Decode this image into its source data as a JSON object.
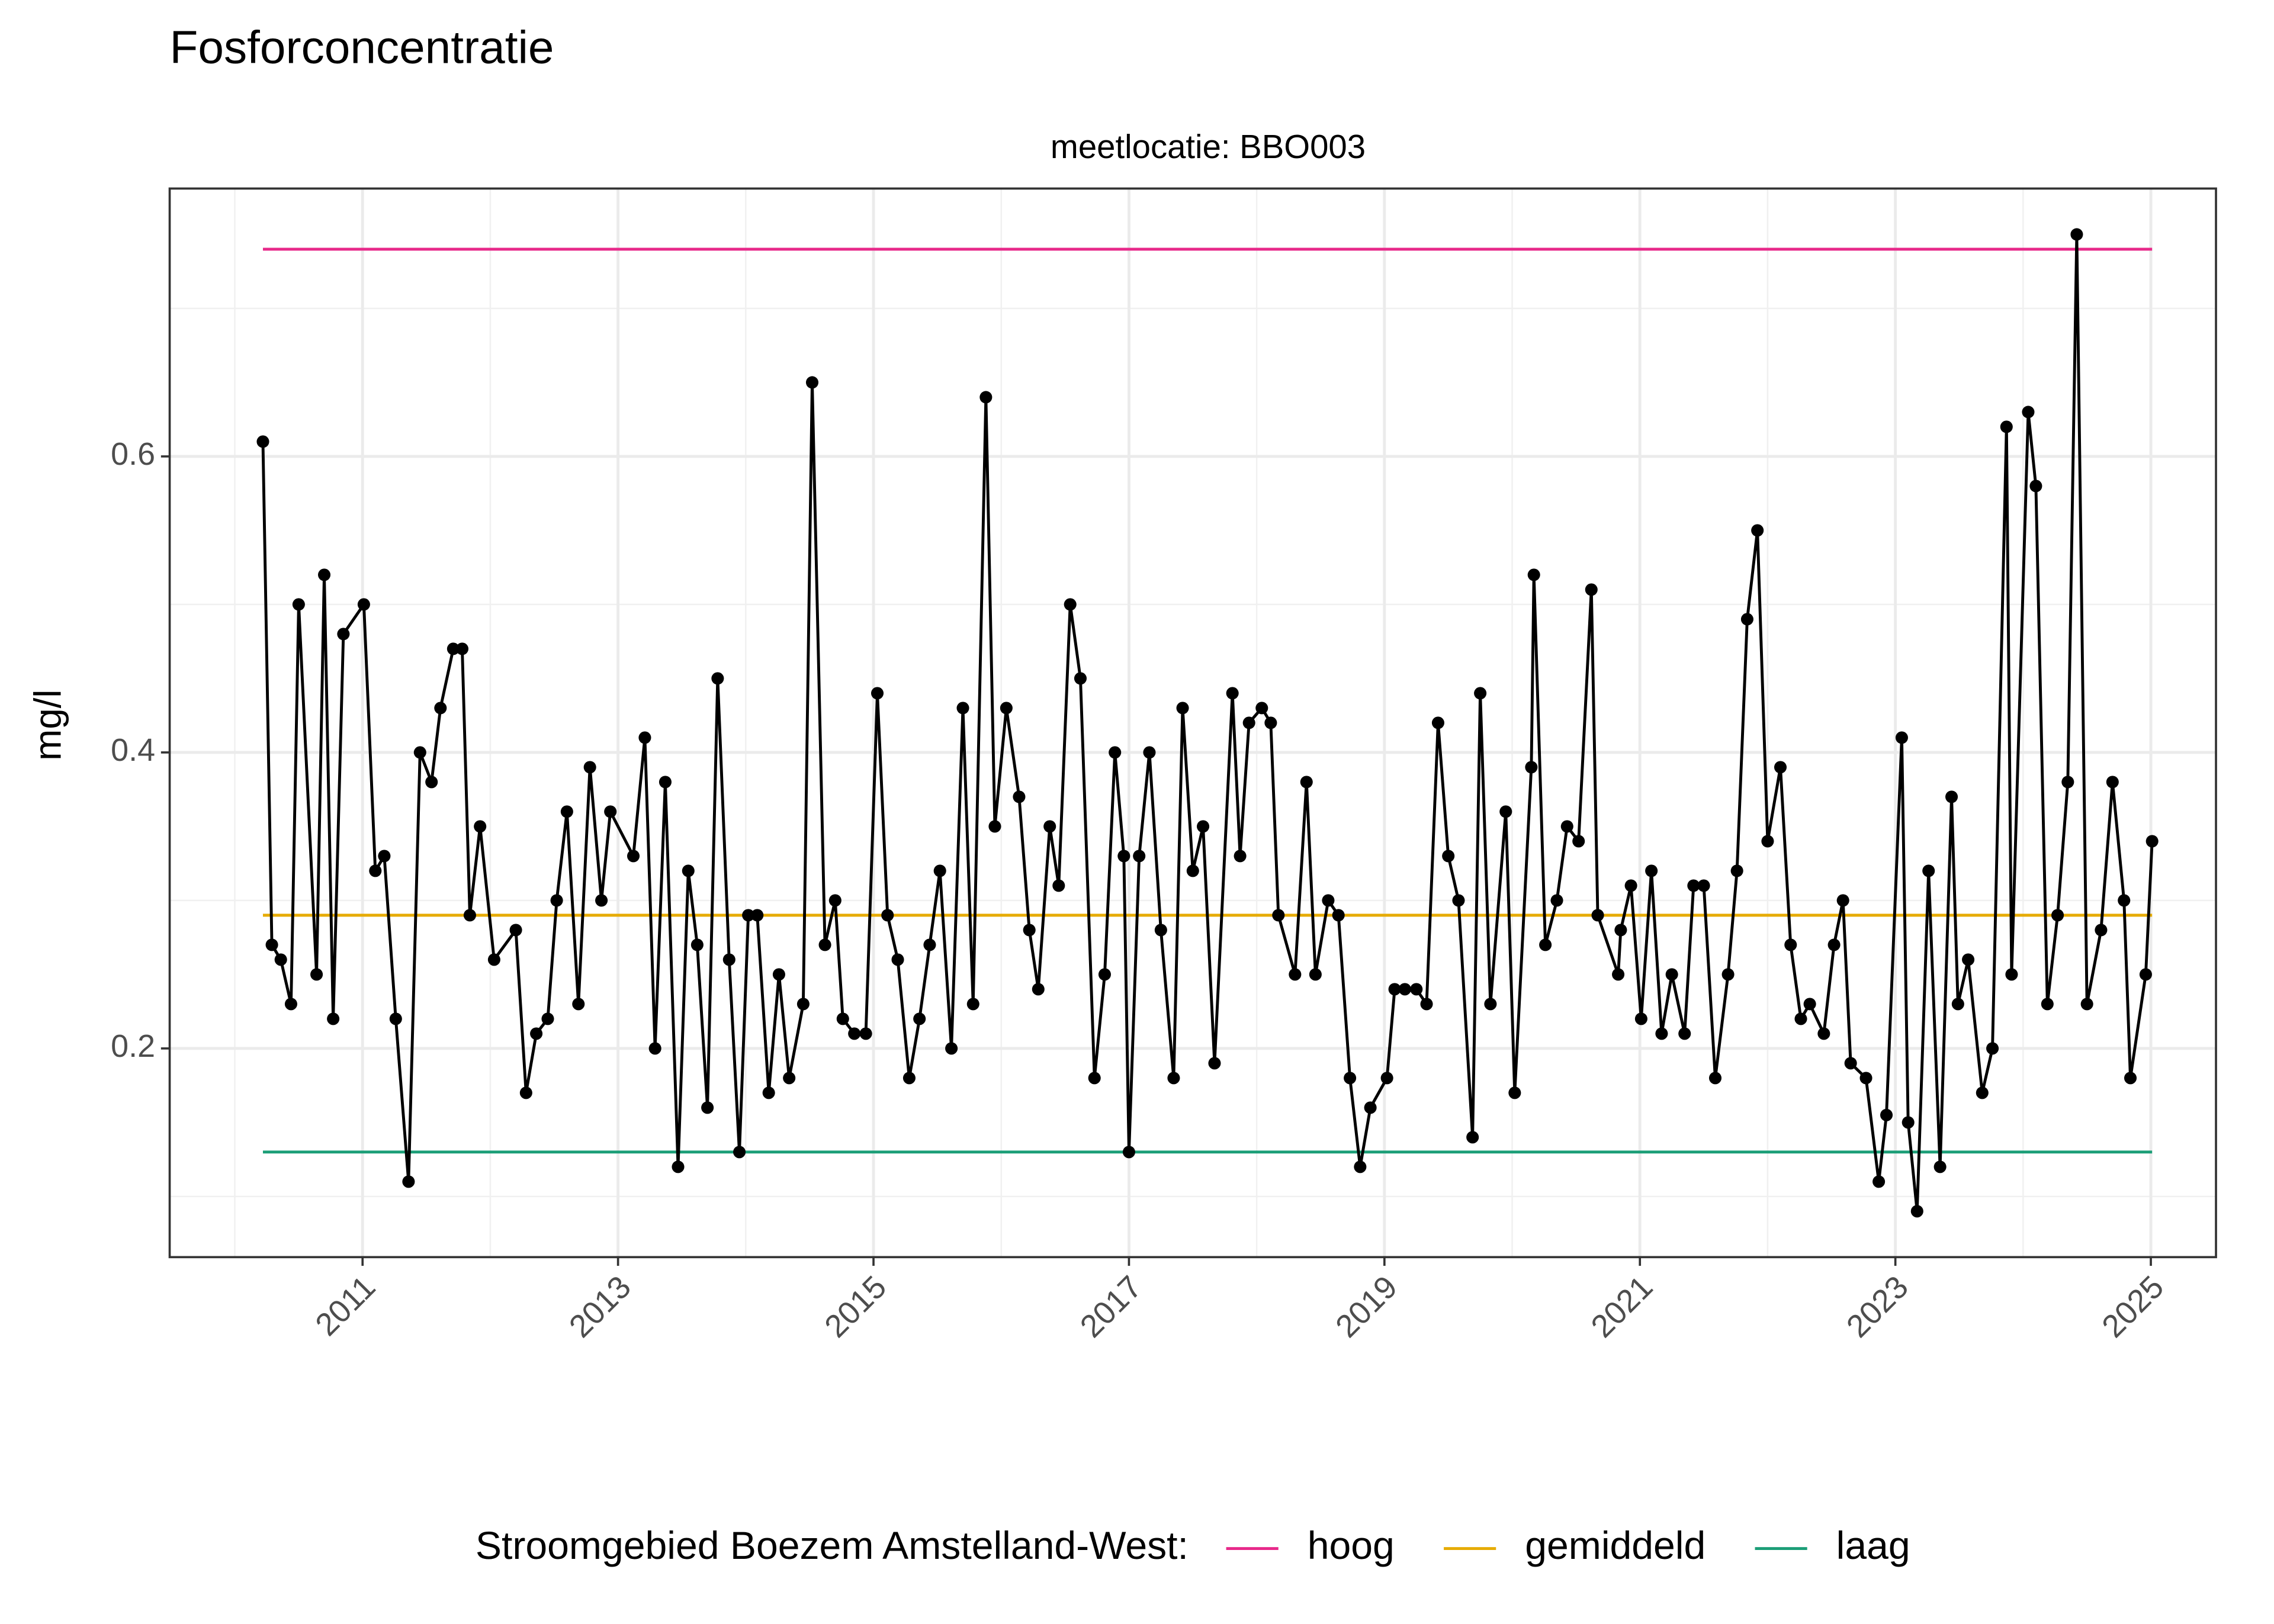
{
  "chart_data": {
    "type": "line",
    "title": "Fosforconcentratie",
    "subtitle": "meetlocatie: BBO003",
    "y_label": "mg/l",
    "legend_title": "Stroomgebied Boezem Amstelland-West:",
    "legend": "bottom",
    "grid": true,
    "color": "#000000",
    "markers": true,
    "xlim": [
      2009.49,
      2025.51
    ],
    "ylim": [
      0.059,
      0.781
    ],
    "xticks": [
      2011,
      2013,
      2015,
      2017,
      2019,
      2021,
      2023,
      2025
    ],
    "x_minor_ticks": [
      2010,
      2012,
      2014,
      2016,
      2018,
      2020,
      2022,
      2024
    ],
    "yticks": [
      0.2,
      0.4,
      0.6
    ],
    "y_minor_ticks": [
      0.1,
      0.3,
      0.5,
      0.7
    ],
    "x": [
      2010.22,
      2010.29,
      2010.36,
      2010.44,
      2010.5,
      2010.64,
      2010.7,
      2010.77,
      2010.85,
      2011.01,
      2011.1,
      2011.17,
      2011.26,
      2011.36,
      2011.45,
      2011.54,
      2011.61,
      2011.71,
      2011.78,
      2011.84,
      2011.92,
      2012.03,
      2012.2,
      2012.28,
      2012.36,
      2012.45,
      2012.52,
      2012.6,
      2012.69,
      2012.78,
      2012.87,
      2012.94,
      2013.12,
      2013.21,
      2013.29,
      2013.37,
      2013.47,
      2013.55,
      2013.62,
      2013.7,
      2013.78,
      2013.87,
      2013.95,
      2014.02,
      2014.09,
      2014.18,
      2014.26,
      2014.34,
      2014.45,
      2014.52,
      2014.62,
      2014.7,
      2014.76,
      2014.85,
      2014.94,
      2015.03,
      2015.11,
      2015.19,
      2015.28,
      2015.36,
      2015.44,
      2015.52,
      2015.61,
      2015.7,
      2015.78,
      2015.88,
      2015.95,
      2016.04,
      2016.14,
      2016.22,
      2016.29,
      2016.38,
      2016.45,
      2016.54,
      2016.62,
      2016.73,
      2016.81,
      2016.89,
      2016.96,
      2017.0,
      2017.08,
      2017.16,
      2017.25,
      2017.35,
      2017.42,
      2017.5,
      2017.58,
      2017.67,
      2017.81,
      2017.87,
      2017.94,
      2018.04,
      2018.11,
      2018.17,
      2018.3,
      2018.39,
      2018.46,
      2018.56,
      2018.64,
      2018.73,
      2018.81,
      2018.89,
      2019.02,
      2019.08,
      2019.16,
      2019.25,
      2019.33,
      2019.42,
      2019.5,
      2019.58,
      2019.69,
      2019.75,
      2019.83,
      2019.95,
      2020.02,
      2020.15,
      2020.17,
      2020.26,
      2020.35,
      2020.43,
      2020.52,
      2020.62,
      2020.67,
      2020.83,
      2020.85,
      2020.93,
      2021.01,
      2021.09,
      2021.17,
      2021.25,
      2021.35,
      2021.42,
      2021.5,
      2021.59,
      2021.69,
      2021.76,
      2021.84,
      2021.92,
      2022.0,
      2022.1,
      2022.18,
      2022.26,
      2022.33,
      2022.44,
      2022.52,
      2022.59,
      2022.65,
      2022.77,
      2022.87,
      2022.93,
      2023.05,
      2023.1,
      2023.17,
      2023.26,
      2023.35,
      2023.44,
      2023.49,
      2023.57,
      2023.68,
      2023.76,
      2023.87,
      2023.91,
      2024.04,
      2024.1,
      2024.19,
      2024.27,
      2024.35,
      2024.42,
      2024.5,
      2024.61,
      2024.7,
      2024.79,
      2024.84,
      2024.96,
      2025.01
    ],
    "values": [
      0.61,
      0.27,
      0.26,
      0.23,
      0.5,
      0.25,
      0.52,
      0.22,
      0.48,
      0.5,
      0.32,
      0.33,
      0.22,
      0.11,
      0.4,
      0.38,
      0.43,
      0.47,
      0.47,
      0.29,
      0.35,
      0.26,
      0.28,
      0.17,
      0.21,
      0.22,
      0.3,
      0.36,
      0.23,
      0.39,
      0.3,
      0.36,
      0.33,
      0.41,
      0.2,
      0.38,
      0.12,
      0.32,
      0.27,
      0.16,
      0.45,
      0.26,
      0.13,
      0.29,
      0.29,
      0.17,
      0.25,
      0.18,
      0.23,
      0.65,
      0.27,
      0.3,
      0.22,
      0.21,
      0.21,
      0.44,
      0.29,
      0.26,
      0.18,
      0.22,
      0.27,
      0.32,
      0.2,
      0.43,
      0.23,
      0.64,
      0.35,
      0.43,
      0.37,
      0.28,
      0.24,
      0.35,
      0.31,
      0.5,
      0.45,
      0.18,
      0.25,
      0.4,
      0.33,
      0.13,
      0.33,
      0.4,
      0.28,
      0.18,
      0.43,
      0.32,
      0.35,
      0.19,
      0.44,
      0.33,
      0.42,
      0.43,
      0.42,
      0.29,
      0.25,
      0.38,
      0.25,
      0.3,
      0.29,
      0.18,
      0.12,
      0.16,
      0.18,
      0.24,
      0.24,
      0.24,
      0.23,
      0.42,
      0.33,
      0.3,
      0.14,
      0.44,
      0.23,
      0.36,
      0.17,
      0.39,
      0.52,
      0.27,
      0.3,
      0.35,
      0.34,
      0.51,
      0.29,
      0.25,
      0.28,
      0.31,
      0.22,
      0.32,
      0.21,
      0.25,
      0.21,
      0.31,
      0.31,
      0.18,
      0.25,
      0.32,
      0.49,
      0.55,
      0.34,
      0.39,
      0.27,
      0.22,
      0.23,
      0.21,
      0.27,
      0.3,
      0.19,
      0.18,
      0.11,
      0.155,
      0.41,
      0.15,
      0.09,
      0.32,
      0.12,
      0.37,
      0.23,
      0.26,
      0.17,
      0.2,
      0.62,
      0.25,
      0.63,
      0.58,
      0.23,
      0.29,
      0.38,
      0.75,
      0.23,
      0.28,
      0.38,
      0.3,
      0.18,
      0.25,
      0.34
    ],
    "series": [
      {
        "name": "hoog",
        "color": "#e7298a",
        "x": [
          2010.22,
          2025.01
        ],
        "values": [
          0.74,
          0.74
        ]
      },
      {
        "name": "gemiddeld",
        "color": "#e6ab02",
        "x": [
          2010.22,
          2025.01
        ],
        "values": [
          0.29,
          0.29
        ]
      },
      {
        "name": "laag",
        "color": "#1b9e77",
        "x": [
          2010.22,
          2025.01
        ],
        "values": [
          0.13,
          0.13
        ]
      }
    ]
  }
}
